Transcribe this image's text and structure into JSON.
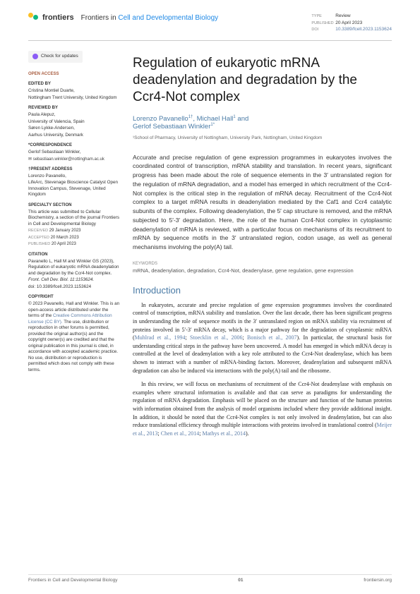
{
  "header": {
    "logo_text": "frontiers",
    "journal_prefix": "Frontiers in ",
    "journal_highlight": "Cell and Developmental Biology",
    "meta": {
      "type_label": "TYPE",
      "type": "Review",
      "published_label": "PUBLISHED",
      "published": "20 April 2023",
      "doi_label": "DOI",
      "doi": "10.3389/fcell.2023.1153624"
    }
  },
  "sidebar": {
    "check_updates": "Check for updates",
    "open_access": "OPEN ACCESS",
    "edited_by_label": "EDITED BY",
    "edited_by_name": "Cristina Montiel Duarte,",
    "edited_by_aff": "Nottingham Trent University, United Kingdom",
    "reviewed_by_label": "REVIEWED BY",
    "reviewer1_name": "Paula Alepuz,",
    "reviewer1_aff": "University of Valencia, Spain",
    "reviewer2_name": "Søren Lykke-Andersen,",
    "reviewer2_aff": "Aarhus University, Denmark",
    "correspondence_label": "*CORRESPONDENCE",
    "corr_name": "Gerlof Sebastiaan Winkler,",
    "corr_email": "✉ sebastiaan.winkler@nottingham.ac.uk",
    "present_label": "†PRESENT ADDRESS",
    "present_name": "Lorenzo Pavanello,",
    "present_aff": "LifeArc, Stevenage Bioscience Catalyst Open Innovation Campus, Stevenage, United Kingdom",
    "specialty_label": "SPECIALTY SECTION",
    "specialty_text": "This article was submitted to Cellular Biochemistry, a section of the journal Frontiers in Cell and Developmental Biology",
    "received_label": "RECEIVED",
    "received": "29 January 2023",
    "accepted_label": "ACCEPTED",
    "accepted": "20 March 2023",
    "published_label": "PUBLISHED",
    "published": "20 April 2023",
    "citation_label": "CITATION",
    "citation": "Pavanello L, Hall M and Winkler GS (2023), Regulation of eukaryotic mRNA deadenylation and degradation by the Ccr4-Not complex.",
    "citation_journal": "Front. Cell Dev. Biol. 11:1153624.",
    "citation_doi": "doi: 10.3389/fcell.2023.1153624",
    "copyright_label": "COPYRIGHT",
    "copyright_text1": "© 2023 Pavanello, Hall and Winkler. This is an open-access article distributed under the terms of the ",
    "copyright_license": "Creative Commons Attribution License (CC BY).",
    "copyright_text2": " The use, distribution or reproduction in other forums is permitted, provided the original author(s) and the copyright owner(s) are credited and that the original publication in this journal is cited, in accordance with accepted academic practice. No use, distribution or reproduction is permitted which does not comply with these terms."
  },
  "article": {
    "title": "Regulation of eukaryotic mRNA deadenylation and degradation by the Ccr4-Not complex",
    "authors": "Lorenzo Pavanello",
    "author1_sup": "1†",
    "author2": ", Michael Hall",
    "author2_sup": "1",
    "author_and": " and",
    "author3": "Gerlof Sebastiaan Winkler",
    "author3_sup": "1*",
    "affiliation": "¹School of Pharmacy, University of Nottingham, University Park, Nottingham, United Kingdom",
    "abstract": "Accurate and precise regulation of gene expression programmes in eukaryotes involves the coordinated control of transcription, mRNA stability and translation. In recent years, significant progress has been made about the role of sequence elements in the 3′ untranslated region for the regulation of mRNA degradation, and a model has emerged in which recruitment of the Ccr4-Not complex is the critical step in the regulation of mRNA decay. Recruitment of the Ccr4-Not complex to a target mRNA results in deadenylation mediated by the Caf1 and Ccr4 catalytic subunits of the complex. Following deadenylation, the 5′ cap structure is removed, and the mRNA subjected to 5′-3′ degradation. Here, the role of the human Ccr4-Not complex in cytoplasmic deadenylation of mRNA is reviewed, with a particular focus on mechanisms of its recruitment to mRNA by sequence motifs in the 3′ untranslated region, codon usage, as well as general mechanisms involving the poly(A) tail.",
    "keywords_label": "KEYWORDS",
    "keywords": "mRNA, deadenylation, degradation, Ccr4-Not, deadenylase, gene regulation, gene expression",
    "intro_heading": "Introduction",
    "intro_p1_a": "In eukaryotes, accurate and precise regulation of gene expression programmes involves the coordinated control of transcription, mRNA stability and translation. Over the last decade, there has been significant progress in understanding the role of sequence motifs in the 3′ untranslated region on mRNA stability via recruitment of proteins involved in 5′-3′ mRNA decay, which is a major pathway for the degradation of cytoplasmic mRNA (",
    "intro_p1_cite1": "Muhlrad et al., 1994",
    "intro_p1_b": "; ",
    "intro_p1_cite2": "Stoecklin et al., 2006",
    "intro_p1_c": "; ",
    "intro_p1_cite3": "Bonisch et al., 2007",
    "intro_p1_d": "). In particular, the structural basis for understanding critical steps in the pathway have been uncovered. A model has emerged in which mRNA decay is controlled at the level of deadenylation with a key role attributed to the Ccr4-Not deadenylase, which has been shown to interact with a number of mRNA-binding factors. Moreover, deadenylation and subsequent mRNA degradation can also be induced via interactions with the poly(A) tail and the ribosome.",
    "intro_p2_a": "In this review, we will focus on mechanisms of recruitment of the Ccr4-Not deadenylase with emphasis on examples where structural information is available and that can serve as paradigms for understanding the regulation of mRNA degradation. Emphasis will be placed on the structure and function of the human proteins with information obtained from the analysis of model organisms included where they provide additional insight. In addition, it should be noted that the Ccr4-Not complex is not only involved in deadenylation, but can also reduce translational efficiency through multiple interactions with proteins involved in translational control (",
    "intro_p2_cite1": "Meijer et al., 2013",
    "intro_p2_b": "; ",
    "intro_p2_cite2": "Chen et al., 2014",
    "intro_p2_c": "; ",
    "intro_p2_cite3": "Mathys et al., 2014",
    "intro_p2_d": ")."
  },
  "footer": {
    "left": "Frontiers in Cell and Developmental Biology",
    "page": "01",
    "right": "frontiersin.org"
  }
}
